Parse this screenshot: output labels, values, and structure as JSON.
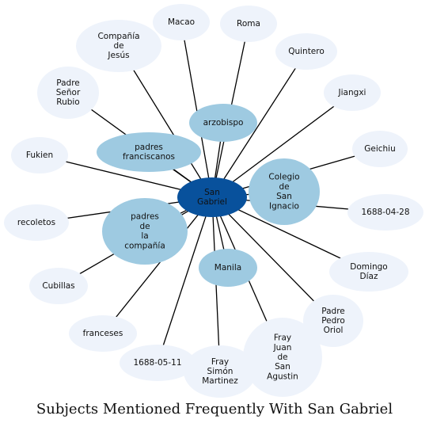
{
  "title": "Subjects Mentioned Frequently With San Gabriel",
  "colors": {
    "center": "#08519c",
    "strong": "#9ecae1",
    "weak": "#eef3fb",
    "edge": "#000000"
  },
  "center": {
    "label": "San Gabriel"
  },
  "nodes": [
    {
      "key": "macao",
      "label": "Macao",
      "strength": "weak"
    },
    {
      "key": "roma",
      "label": "Roma",
      "strength": "weak"
    },
    {
      "key": "compania-de-jesus",
      "label": "Compañía de Jesús",
      "strength": "weak"
    },
    {
      "key": "quintero",
      "label": "Quintero",
      "strength": "weak"
    },
    {
      "key": "jiangxi",
      "label": "Jiangxi",
      "strength": "weak"
    },
    {
      "key": "padre-senor-rubio",
      "label": "Padre Señor Rubio",
      "strength": "weak"
    },
    {
      "key": "arzobispo",
      "label": "arzobispo",
      "strength": "strong"
    },
    {
      "key": "padres-franciscanos",
      "label": "padres franciscanos",
      "strength": "strong"
    },
    {
      "key": "geichiu",
      "label": "Geichiu",
      "strength": "weak"
    },
    {
      "key": "fukien",
      "label": "Fukien",
      "strength": "weak"
    },
    {
      "key": "colegio-de-san-ignacio",
      "label": "Colegio de San Ignacio",
      "strength": "strong"
    },
    {
      "key": "1688-04-28",
      "label": "1688-04-28",
      "strength": "weak"
    },
    {
      "key": "recoletos",
      "label": "recoletos",
      "strength": "weak"
    },
    {
      "key": "padres-de-la-compania",
      "label": "padres de la compañía",
      "strength": "strong"
    },
    {
      "key": "manila",
      "label": "Manila",
      "strength": "strong"
    },
    {
      "key": "domingo-diaz",
      "label": "Domingo Díaz",
      "strength": "weak"
    },
    {
      "key": "cubillas",
      "label": "Cubillas",
      "strength": "weak"
    },
    {
      "key": "padre-pedro-oriol",
      "label": "Padre Pedro Oriol",
      "strength": "weak"
    },
    {
      "key": "franceses",
      "label": "franceses",
      "strength": "weak"
    },
    {
      "key": "fray-juan-de-san-agustin",
      "label": "Fray Juan de San Agustin",
      "strength": "weak"
    },
    {
      "key": "1688-05-11",
      "label": "1688-05-11",
      "strength": "weak"
    },
    {
      "key": "fray-simon-martinez",
      "label": "Fray Simón Martinez",
      "strength": "weak"
    }
  ]
}
